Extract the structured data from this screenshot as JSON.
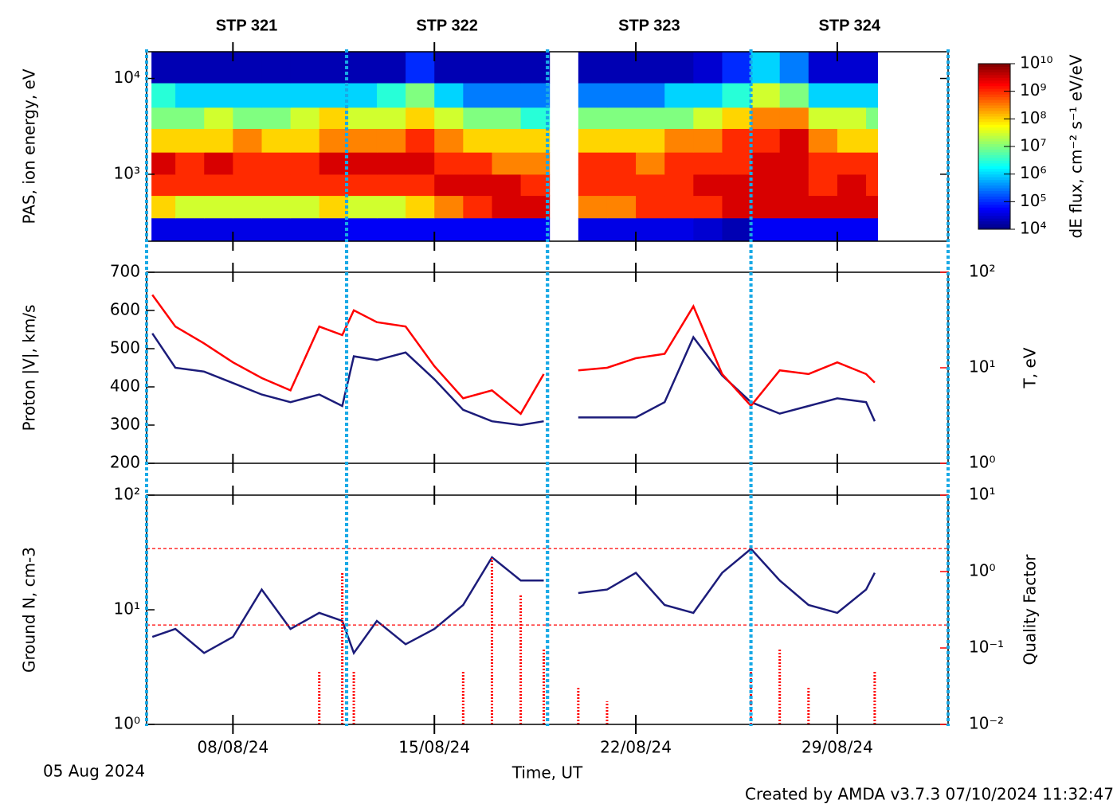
{
  "segments": [
    {
      "label": "STP 321",
      "start": 0,
      "end": 6.95
    },
    {
      "label": "STP 322",
      "start": 6.95,
      "end": 13.93
    },
    {
      "label": "STP 323",
      "start": 13.93,
      "end": 21.0
    },
    {
      "label": "STP 324",
      "start": 21.0,
      "end": 27.85
    }
  ],
  "footer": "Created by AMDA v3.7.3 07/10/2024 11:32:47",
  "chart_data": [
    {
      "type": "heatmap",
      "ylabel": "PAS, ion energy, eV",
      "yscale": "log",
      "ylim": [
        200,
        19000
      ],
      "yticks": [
        {
          "value": 1000,
          "label": "10³"
        },
        {
          "value": 10000,
          "label": "10⁴"
        }
      ],
      "xlim": [
        0,
        27.85
      ],
      "xticks": [
        3,
        10,
        17,
        24
      ],
      "xbins": [
        0.17,
        1,
        2,
        3,
        4,
        5,
        6,
        7,
        8,
        9,
        10,
        11,
        12,
        13,
        14,
        15,
        16,
        17,
        18,
        19,
        20,
        21,
        22,
        23,
        24,
        25,
        25.4
      ],
      "ybins": [
        200,
        350,
        600,
        1000,
        1700,
        3000,
        5000,
        9000,
        19000
      ],
      "z": [
        [
          40000.0,
          40000.0,
          40000.0,
          40000.0,
          40000.0,
          40000.0,
          40000.0,
          50000.0,
          50000.0,
          50000.0,
          50000.0,
          50000.0,
          50000.0,
          50000.0,
          null,
          40000.0,
          40000.0,
          40000.0,
          40000.0,
          30000.0,
          20000.0,
          50000.0,
          50000.0,
          50000.0,
          50000.0,
          50000.0
        ],
        [
          100000000.0,
          30000000.0,
          30000000.0,
          30000000.0,
          30000000.0,
          30000000.0,
          100000000.0,
          30000000.0,
          30000000.0,
          100000000.0,
          300000000.0,
          1000000000.0,
          3000000000.0,
          3000000000.0,
          null,
          300000000.0,
          300000000.0,
          1000000000.0,
          1000000000.0,
          1000000000.0,
          3000000000.0,
          3000000000.0,
          3000000000.0,
          3000000000.0,
          3000000000.0,
          3000000000.0
        ],
        [
          1000000000.0,
          1000000000.0,
          1000000000.0,
          1000000000.0,
          1000000000.0,
          1000000000.0,
          1000000000.0,
          1000000000.0,
          1000000000.0,
          1000000000.0,
          3000000000.0,
          3000000000.0,
          3000000000.0,
          1000000000.0,
          null,
          1000000000.0,
          1000000000.0,
          1000000000.0,
          1000000000.0,
          3000000000.0,
          3000000000.0,
          3000000000.0,
          3000000000.0,
          1000000000.0,
          3000000000.0,
          1000000000.0
        ],
        [
          3000000000.0,
          1000000000.0,
          3000000000.0,
          1000000000.0,
          1000000000.0,
          1000000000.0,
          3000000000.0,
          3000000000.0,
          3000000000.0,
          3000000000.0,
          1000000000.0,
          1000000000.0,
          300000000.0,
          300000000.0,
          null,
          1000000000.0,
          1000000000.0,
          300000000.0,
          1000000000.0,
          1000000000.0,
          1000000000.0,
          3000000000.0,
          3000000000.0,
          1000000000.0,
          1000000000.0,
          1000000000.0
        ],
        [
          100000000.0,
          100000000.0,
          100000000.0,
          300000000.0,
          100000000.0,
          100000000.0,
          300000000.0,
          300000000.0,
          300000000.0,
          1000000000.0,
          300000000.0,
          100000000.0,
          100000000.0,
          100000000.0,
          null,
          100000000.0,
          100000000.0,
          100000000.0,
          300000000.0,
          300000000.0,
          1000000000.0,
          1000000000.0,
          3000000000.0,
          300000000.0,
          100000000.0,
          100000000.0
        ],
        [
          10000000.0,
          10000000.0,
          30000000.0,
          10000000.0,
          10000000.0,
          30000000.0,
          100000000.0,
          30000000.0,
          30000000.0,
          100000000.0,
          30000000.0,
          10000000.0,
          10000000.0,
          3000000.0,
          null,
          10000000.0,
          10000000.0,
          10000000.0,
          10000000.0,
          30000000.0,
          100000000.0,
          300000000.0,
          300000000.0,
          30000000.0,
          30000000.0,
          10000000.0
        ],
        [
          3000000.0,
          1000000.0,
          1000000.0,
          1000000.0,
          1000000.0,
          1000000.0,
          1000000.0,
          1000000.0,
          3000000.0,
          10000000.0,
          1000000.0,
          300000.0,
          300000.0,
          300000.0,
          null,
          300000.0,
          300000.0,
          300000.0,
          1000000.0,
          1000000.0,
          3000000.0,
          30000000.0,
          10000000.0,
          1000000.0,
          1000000.0,
          1000000.0
        ],
        [
          20000.0,
          20000.0,
          20000.0,
          20000.0,
          20000.0,
          20000.0,
          20000.0,
          20000.0,
          20000.0,
          100000.0,
          20000.0,
          20000.0,
          20000.0,
          20000.0,
          null,
          20000.0,
          20000.0,
          20000.0,
          20000.0,
          30000.0,
          100000.0,
          1000000.0,
          300000.0,
          30000.0,
          30000.0,
          30000.0
        ]
      ],
      "colorbar": {
        "label": "dE flux, cm⁻² s⁻¹ eV/eV",
        "scale": "log",
        "colormap": "jet",
        "lim": [
          10000.0,
          10000000000.0
        ],
        "ticks": [
          {
            "value": 10000.0,
            "label": "10⁴"
          },
          {
            "value": 100000.0,
            "label": "10⁵"
          },
          {
            "value": 1000000.0,
            "label": "10⁶"
          },
          {
            "value": 10000000.0,
            "label": "10⁷"
          },
          {
            "value": 100000000.0,
            "label": "10⁸"
          },
          {
            "value": 1000000000.0,
            "label": "10⁹"
          },
          {
            "value": 10000000000.0,
            "label": "10¹⁰"
          }
        ]
      }
    },
    {
      "type": "line",
      "ylabel": "Proton |V|, km/s",
      "yscale": "linear",
      "ylim": [
        200,
        700
      ],
      "yticks": [
        200,
        300,
        400,
        500,
        600,
        700
      ],
      "y2label": "T, eV",
      "y2scale": "log",
      "y2lim": [
        1,
        100
      ],
      "y2ticks": [
        {
          "value": 1,
          "label": "10⁰"
        },
        {
          "value": 10,
          "label": "10¹"
        },
        {
          "value": 100,
          "label": "10²"
        }
      ],
      "xlim": [
        0,
        27.85
      ],
      "xticks": [
        3,
        10,
        17,
        24
      ],
      "x": [
        0.2,
        1,
        2,
        3,
        4,
        5,
        6,
        6.8,
        7.2,
        8,
        9,
        10,
        11,
        12,
        13,
        13.8,
        14.4,
        15,
        16,
        17,
        18,
        19,
        20,
        21,
        22,
        23,
        24,
        25,
        25.3
      ],
      "series": [
        {
          "color": "#1c1c7a",
          "values": [
            540,
            450,
            440,
            410,
            380,
            360,
            380,
            350,
            480,
            470,
            490,
            420,
            340,
            310,
            300,
            310,
            null,
            320,
            320,
            320,
            360,
            530,
            430,
            360,
            330,
            350,
            370,
            360,
            310
          ]
        },
        {
          "color": "#ff0000",
          "axis": "y2",
          "values": [
            58,
            27,
            18,
            11.4,
            7.8,
            5.8,
            27,
            22,
            40,
            30,
            27,
            10.4,
            4.8,
            5.8,
            3.3,
            8.6,
            null,
            9.4,
            10,
            12.6,
            14,
            44,
            8.6,
            4,
            9.4,
            8.6,
            11.4,
            8.6,
            7
          ]
        }
      ]
    },
    {
      "type": "line",
      "ylabel": "Ground N, cm-3",
      "yscale": "log",
      "ylim": [
        1,
        100
      ],
      "yticks": [
        {
          "value": 1,
          "label": "10⁰"
        },
        {
          "value": 10,
          "label": "10¹"
        },
        {
          "value": 100,
          "label": "10²"
        }
      ],
      "y2label": "Quality Factor",
      "y2scale": "log",
      "y2lim": [
        0.01,
        10
      ],
      "y2ticks": [
        {
          "value": 0.01,
          "label": "10⁻²"
        },
        {
          "value": 0.1,
          "label": "10⁻¹"
        },
        {
          "value": 1,
          "label": "10⁰"
        },
        {
          "value": 10,
          "label": "10¹"
        }
      ],
      "y2_reference_lines": [
        2,
        0.2
      ],
      "xlim": [
        0,
        27.85
      ],
      "xticks": [
        {
          "value": 3,
          "label": "08/08/24"
        },
        {
          "value": 10,
          "label": "15/08/24"
        },
        {
          "value": 17,
          "label": "22/08/24"
        },
        {
          "value": 24,
          "label": "29/08/24"
        }
      ],
      "xlabel": "Time, UT",
      "x_start_label": "05 Aug 2024",
      "x": [
        0.2,
        1,
        2,
        3,
        4,
        5,
        6,
        6.8,
        7.2,
        8,
        9,
        10,
        11,
        12,
        13,
        13.8,
        14.4,
        15,
        16,
        17,
        18,
        19,
        20,
        21,
        22,
        23,
        24,
        25,
        25.3
      ],
      "series": [
        {
          "color": "#1c1c7a",
          "values": [
            5.8,
            6.8,
            4.2,
            5.8,
            15,
            6.8,
            9.4,
            8,
            4.2,
            8,
            5,
            6.8,
            11,
            28.7,
            18,
            18,
            null,
            14,
            15,
            21,
            11,
            9.4,
            21,
            34,
            18,
            11,
            9.4,
            15,
            21
          ]
        },
        {
          "color": "#ff0000",
          "axis": "y2",
          "mode": "spikes",
          "values": [
            null,
            null,
            null,
            null,
            null,
            null,
            0.05,
            1.0,
            0.05,
            null,
            null,
            null,
            0.05,
            1.5,
            0.5,
            0.1,
            null,
            0.03,
            0.02,
            null,
            null,
            null,
            null,
            0.05,
            0.1,
            0.03,
            null,
            null,
            0.05
          ]
        }
      ]
    }
  ]
}
